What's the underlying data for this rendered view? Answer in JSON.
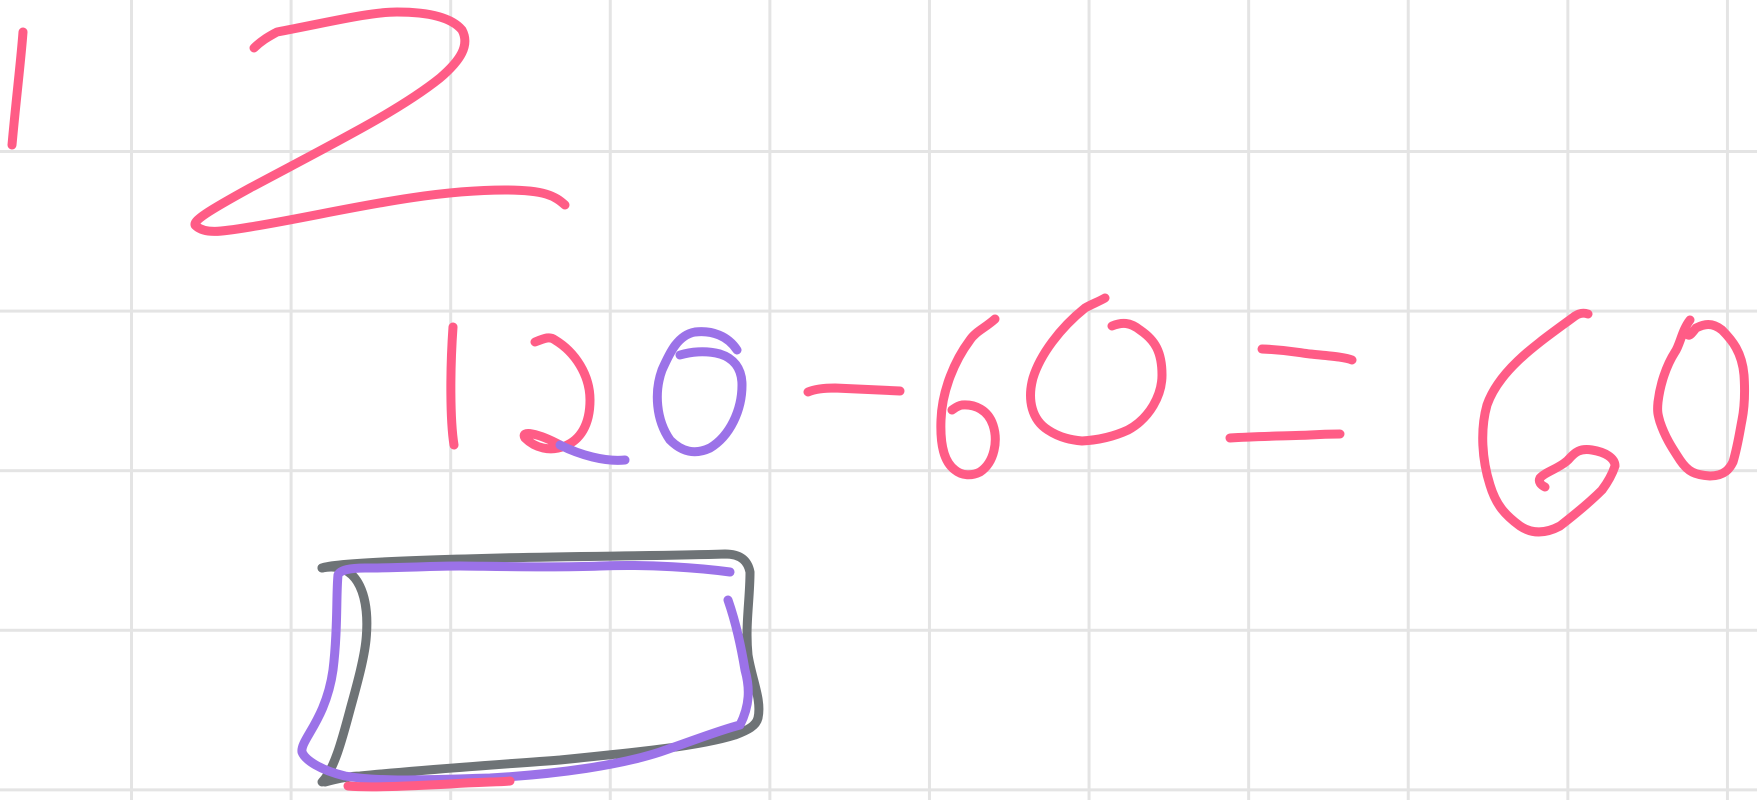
{
  "canvas": {
    "background": "#ffffff",
    "grid_color": "#e4e4e4"
  },
  "ink": {
    "pink": "#ff5c86",
    "purple": "#9b72e8",
    "gray": "#6e7376"
  },
  "handwriting": {
    "top_row": [
      "1",
      "2"
    ],
    "equation": [
      "120",
      "-",
      "60",
      "=",
      "60"
    ],
    "shape": "rectangle"
  }
}
